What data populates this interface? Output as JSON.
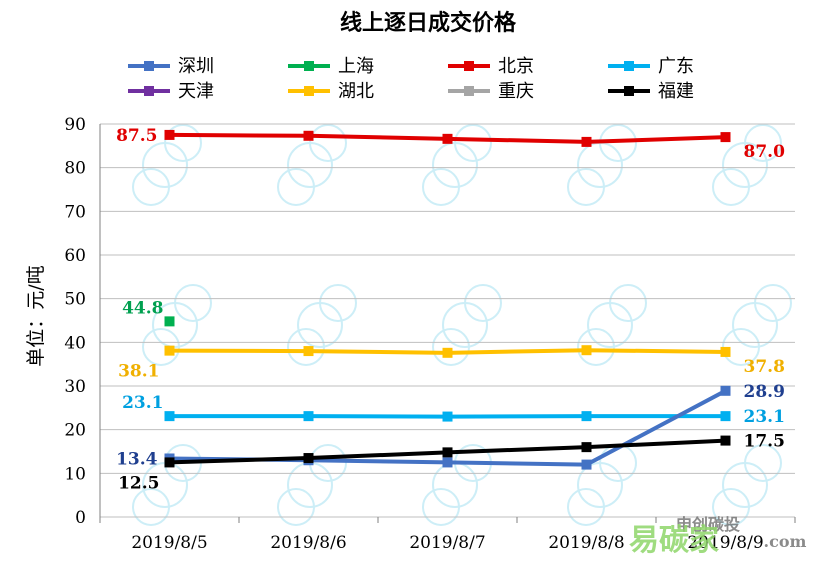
{
  "chart_data": {
    "type": "line",
    "title": "线上逐日成交价格",
    "ylabel": "单位：元/吨",
    "xlabel": "",
    "ylim": [
      0,
      90
    ],
    "yticks": [
      0,
      10,
      20,
      30,
      40,
      50,
      60,
      70,
      80,
      90
    ],
    "categories": [
      "2019/8/5",
      "2019/8/6",
      "2019/8/7",
      "2019/8/8",
      "2019/8/9"
    ],
    "grid": true,
    "legend_position": "top",
    "series": [
      {
        "name": "深圳",
        "color": "#4472c4",
        "values": [
          13.4,
          13.0,
          12.5,
          12.0,
          28.9
        ],
        "label_color": "#1f3f8f",
        "labels": [
          {
            "index": 0,
            "text": "13.4",
            "side": "left"
          },
          {
            "index": 4,
            "text": "28.9",
            "side": "right"
          }
        ]
      },
      {
        "name": "上海",
        "color": "#00b050",
        "values": [
          44.8,
          null,
          null,
          null,
          null
        ],
        "label_color": "#00a050",
        "labels": [
          {
            "index": 0,
            "text": "44.8",
            "side": "left-up"
          }
        ]
      },
      {
        "name": "北京",
        "color": "#e00000",
        "values": [
          87.5,
          87.3,
          86.6,
          85.9,
          87.0
        ],
        "label_color": "#e00000",
        "labels": [
          {
            "index": 0,
            "text": "87.5",
            "side": "left"
          },
          {
            "index": 4,
            "text": "87.0",
            "side": "right-down"
          }
        ]
      },
      {
        "name": "广东",
        "color": "#00b0f0",
        "values": [
          23.1,
          23.1,
          23.0,
          23.1,
          23.1
        ],
        "label_color": "#00a0e0",
        "labels": [
          {
            "index": 0,
            "text": "23.1",
            "side": "left-up"
          },
          {
            "index": 4,
            "text": "23.1",
            "side": "right"
          }
        ]
      },
      {
        "name": "天津",
        "color": "#7030a0",
        "values": [
          null,
          null,
          null,
          null,
          null
        ],
        "label_color": "#7030a0",
        "labels": []
      },
      {
        "name": "湖北",
        "color": "#ffc000",
        "values": [
          38.1,
          38.0,
          37.6,
          38.2,
          37.8
        ],
        "label_color": "#f0b000",
        "labels": [
          {
            "index": 0,
            "text": "38.1",
            "side": "left-down"
          },
          {
            "index": 4,
            "text": "37.8",
            "side": "right-down"
          }
        ]
      },
      {
        "name": "重庆",
        "color": "#a5a5a5",
        "values": [
          null,
          null,
          null,
          null,
          null
        ],
        "label_color": "#a5a5a5",
        "labels": []
      },
      {
        "name": "福建",
        "color": "#000000",
        "values": [
          12.5,
          13.5,
          14.8,
          16.0,
          17.5
        ],
        "label_color": "#000000",
        "labels": [
          {
            "index": 0,
            "text": "12.5",
            "side": "left-down"
          },
          {
            "index": 4,
            "text": "17.5",
            "side": "right"
          }
        ]
      }
    ]
  },
  "watermark": {
    "brand": "易碳家",
    "account": "申创碳投",
    "domain": ".com"
  }
}
